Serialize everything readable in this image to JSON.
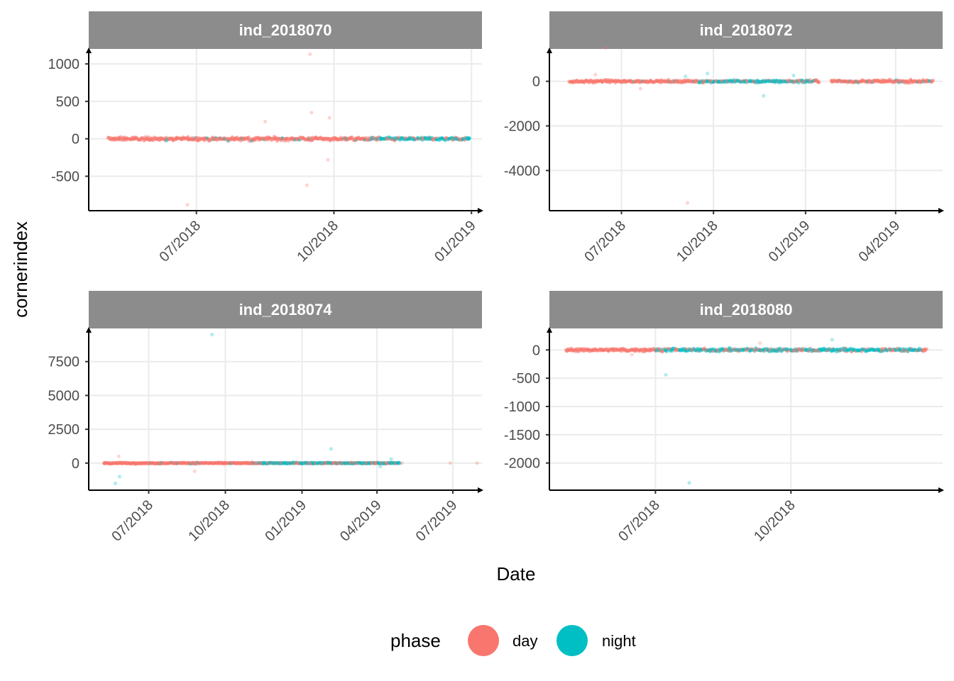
{
  "chart_data": {
    "type": "scatter",
    "x_title": "Date",
    "y_title": "cornerindex",
    "legend": {
      "title": "phase",
      "position": "bottom",
      "entries": [
        {
          "label": "day",
          "color": "#F8766D"
        },
        {
          "label": "night",
          "color": "#00BFC4"
        }
      ]
    },
    "grid": true,
    "panels": [
      {
        "label": "ind_2018070",
        "xlim": [
          "2018-04-20",
          "2019-01-08"
        ],
        "ylim": [
          -960,
          1200
        ],
        "x_breaks": [
          "2018-07-01",
          "2018-10-01",
          "2019-01-01"
        ],
        "x_labels": [
          "07/2018",
          "10/2018",
          "01/2019"
        ],
        "y_breaks": [
          -500,
          0,
          500,
          1000
        ],
        "y_labels": [
          "-500",
          "0",
          "500",
          "1000"
        ],
        "band": {
          "start": "2018-05-03",
          "end": "2018-12-31",
          "night_from": "2018-10-25",
          "spread": 15
        },
        "outliers": [
          {
            "date": "2018-06-25",
            "value": -880,
            "phase": "day"
          },
          {
            "date": "2018-08-16",
            "value": 230,
            "phase": "day"
          },
          {
            "date": "2018-09-13",
            "value": -620,
            "phase": "day"
          },
          {
            "date": "2018-09-15",
            "value": 1130,
            "phase": "day"
          },
          {
            "date": "2018-09-16",
            "value": 350,
            "phase": "day"
          },
          {
            "date": "2018-09-28",
            "value": 280,
            "phase": "day"
          },
          {
            "date": "2018-09-27",
            "value": -280,
            "phase": "day"
          }
        ]
      },
      {
        "label": "ind_2018072",
        "xlim": [
          "2018-04-20",
          "2019-05-18"
        ],
        "ylim": [
          -5800,
          1450
        ],
        "x_breaks": [
          "2018-07-01",
          "2018-10-01",
          "2019-01-01",
          "2019-04-01"
        ],
        "x_labels": [
          "07/2018",
          "10/2018",
          "01/2019",
          "04/2019"
        ],
        "y_breaks": [
          -4000,
          -2000,
          0
        ],
        "y_labels": [
          "-4000",
          "-2000",
          "0"
        ],
        "band": {
          "start": "2018-05-10",
          "end": "2019-05-08",
          "night_from": "2018-09-15",
          "night_to": "2019-01-15",
          "gap": [
            "2019-01-15",
            "2019-01-26"
          ],
          "spread": 40
        },
        "outliers": [
          {
            "date": "2018-06-15",
            "value": 1500,
            "phase": "day"
          },
          {
            "date": "2018-06-05",
            "value": 300,
            "phase": "day"
          },
          {
            "date": "2018-07-20",
            "value": -330,
            "phase": "day"
          },
          {
            "date": "2018-09-05",
            "value": -5450,
            "phase": "day"
          },
          {
            "date": "2018-09-03",
            "value": 220,
            "phase": "night"
          },
          {
            "date": "2018-09-25",
            "value": 350,
            "phase": "night"
          },
          {
            "date": "2018-11-20",
            "value": -650,
            "phase": "night"
          },
          {
            "date": "2018-12-20",
            "value": 260,
            "phase": "night"
          }
        ]
      },
      {
        "label": "ind_2018074",
        "xlim": [
          "2018-04-20",
          "2019-08-05"
        ],
        "ylim": [
          -2000,
          9950
        ],
        "x_breaks": [
          "2018-07-01",
          "2018-10-01",
          "2019-01-01",
          "2019-04-01",
          "2019-07-01"
        ],
        "x_labels": [
          "07/2018",
          "10/2018",
          "01/2019",
          "04/2019",
          "07/2019"
        ],
        "y_breaks": [
          0,
          2500,
          5000,
          7500
        ],
        "y_labels": [
          "0",
          "2500",
          "5000",
          "7500"
        ],
        "band": {
          "start": "2018-05-08",
          "end": "2019-04-28",
          "night_from": "2018-11-15",
          "spread": 30
        },
        "outliers": [
          {
            "date": "2018-05-26",
            "value": 500,
            "phase": "day"
          },
          {
            "date": "2018-05-22",
            "value": -1500,
            "phase": "night"
          },
          {
            "date": "2018-05-27",
            "value": -1000,
            "phase": "night"
          },
          {
            "date": "2018-09-15",
            "value": 9500,
            "phase": "night"
          },
          {
            "date": "2018-08-25",
            "value": -600,
            "phase": "day"
          },
          {
            "date": "2019-02-05",
            "value": 1050,
            "phase": "night"
          },
          {
            "date": "2019-04-05",
            "value": -250,
            "phase": "night"
          },
          {
            "date": "2019-04-18",
            "value": 300,
            "phase": "night"
          },
          {
            "date": "2019-05-01",
            "value": 0,
            "phase": "day"
          },
          {
            "date": "2019-06-28",
            "value": 0,
            "phase": "day"
          },
          {
            "date": "2019-07-30",
            "value": 0,
            "phase": "day"
          }
        ]
      },
      {
        "label": "ind_2018080",
        "xlim": [
          "2018-04-20",
          "2019-01-12"
        ],
        "ylim": [
          -2480,
          380
        ],
        "x_breaks": [
          "2018-07-01",
          "2018-10-01"
        ],
        "x_labels": [
          "07/2018",
          "10/2018"
        ],
        "y_breaks": [
          -2000,
          -1500,
          -1000,
          -500,
          0
        ],
        "y_labels": [
          "-2000",
          "-1500",
          "-1000",
          "-500",
          "0"
        ],
        "band": {
          "start": "2018-05-01",
          "end": "2019-01-01",
          "night_from": "2018-07-01",
          "spread": 18
        },
        "outliers": [
          {
            "date": "2018-07-08",
            "value": -440,
            "phase": "night"
          },
          {
            "date": "2018-07-24",
            "value": -2350,
            "phase": "night"
          },
          {
            "date": "2018-10-29",
            "value": 180,
            "phase": "night"
          },
          {
            "date": "2018-06-15",
            "value": -80,
            "phase": "day"
          },
          {
            "date": "2018-09-10",
            "value": 120,
            "phase": "day"
          }
        ]
      }
    ]
  }
}
